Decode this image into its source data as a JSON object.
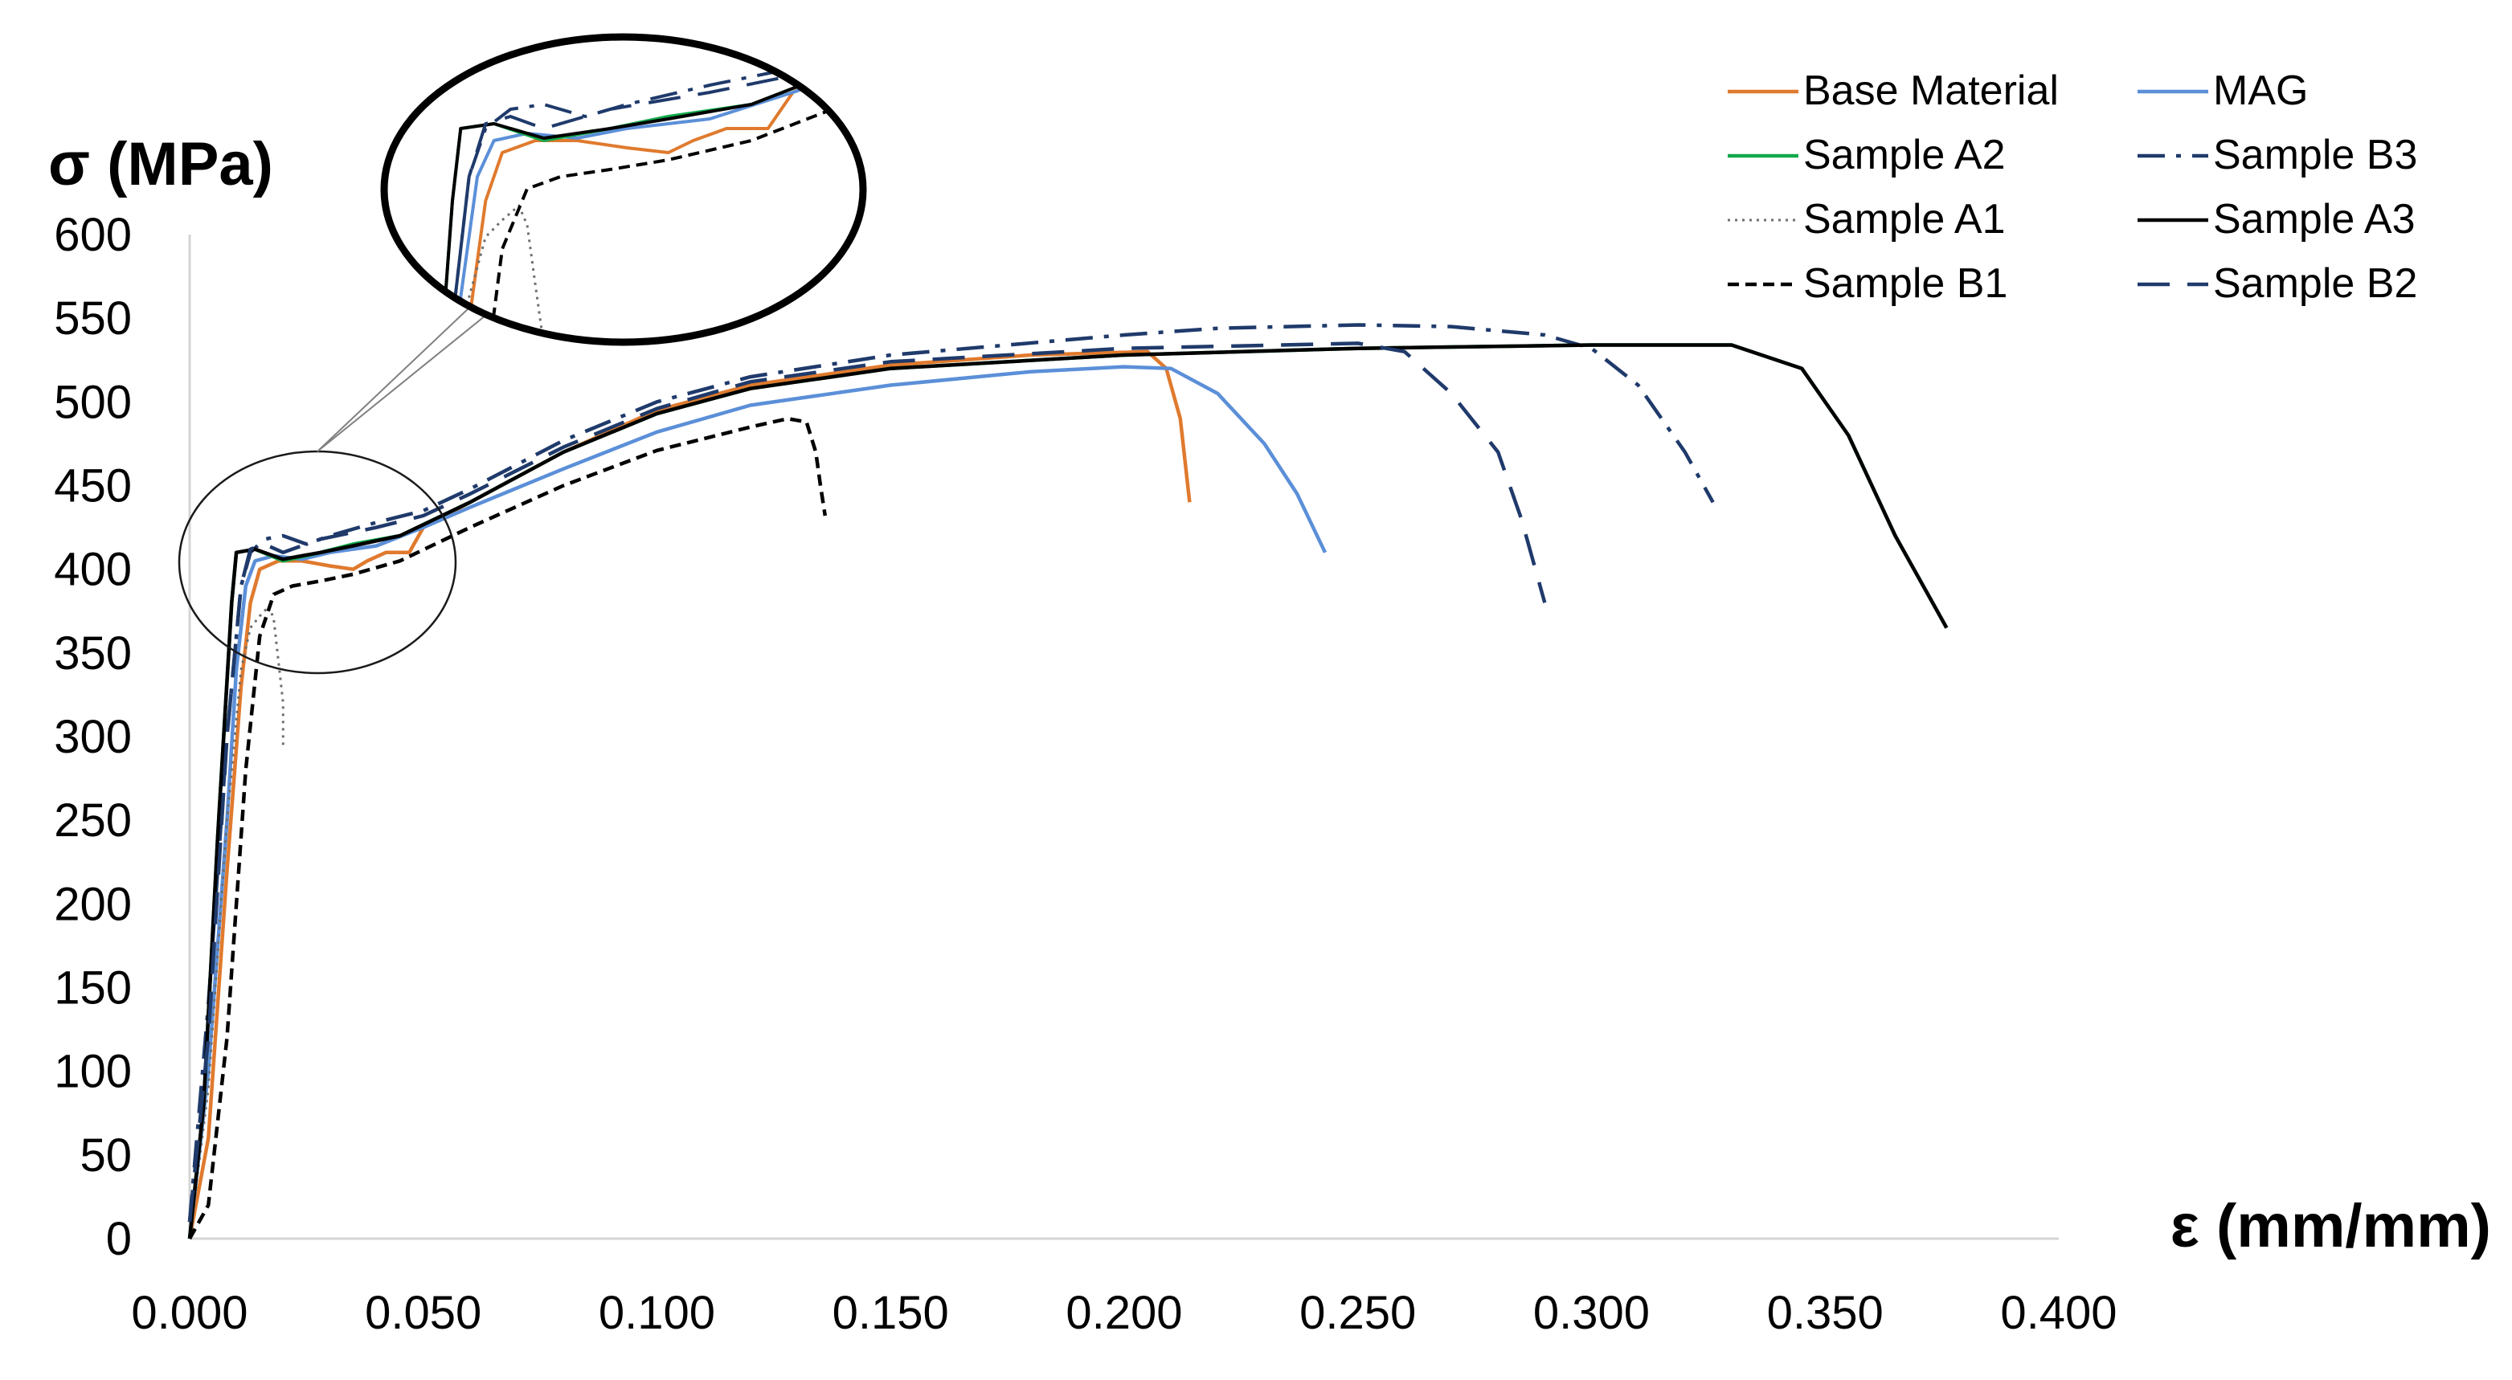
{
  "chart_data": {
    "type": "line",
    "title": "",
    "ylabel": "σ (MPa)",
    "xlabel": "ε (mm/mm)",
    "xlim": [
      0,
      0.4
    ],
    "ylim": [
      0,
      600
    ],
    "x_ticks": [
      "0.000",
      "0.050",
      "0.100",
      "0.150",
      "0.200",
      "0.250",
      "0.300",
      "0.350",
      "0.400"
    ],
    "y_ticks": [
      "0",
      "50",
      "100",
      "150",
      "200",
      "250",
      "300",
      "350",
      "400",
      "450",
      "500",
      "550",
      "600"
    ],
    "grid": false,
    "legend_position": "top-right",
    "inset": {
      "type": "zoom",
      "region_x": [
        0,
        0.06
      ],
      "region_y": [
        330,
        460
      ]
    },
    "series": [
      {
        "name": "Base Material",
        "color": "#E07A2E",
        "dash": "solid",
        "points": [
          [
            0,
            0
          ],
          [
            0.004,
            60
          ],
          [
            0.008,
            220
          ],
          [
            0.011,
            330
          ],
          [
            0.013,
            380
          ],
          [
            0.015,
            400
          ],
          [
            0.019,
            405
          ],
          [
            0.024,
            405
          ],
          [
            0.03,
            402
          ],
          [
            0.035,
            400
          ],
          [
            0.038,
            405
          ],
          [
            0.042,
            410
          ],
          [
            0.047,
            410
          ],
          [
            0.05,
            425
          ],
          [
            0.06,
            440
          ],
          [
            0.08,
            470
          ],
          [
            0.1,
            495
          ],
          [
            0.12,
            510
          ],
          [
            0.15,
            522
          ],
          [
            0.18,
            528
          ],
          [
            0.205,
            530
          ],
          [
            0.209,
            520
          ],
          [
            0.212,
            490
          ],
          [
            0.214,
            440
          ]
        ]
      },
      {
        "name": "MAG",
        "color": "#5B8FD8",
        "dash": "solid",
        "points": [
          [
            0,
            0
          ],
          [
            0.004,
            100
          ],
          [
            0.008,
            250
          ],
          [
            0.01,
            340
          ],
          [
            0.012,
            390
          ],
          [
            0.014,
            405
          ],
          [
            0.018,
            408
          ],
          [
            0.024,
            406
          ],
          [
            0.03,
            410
          ],
          [
            0.04,
            414
          ],
          [
            0.05,
            425
          ],
          [
            0.06,
            437
          ],
          [
            0.08,
            460
          ],
          [
            0.1,
            482
          ],
          [
            0.12,
            498
          ],
          [
            0.15,
            510
          ],
          [
            0.18,
            518
          ],
          [
            0.2,
            521
          ],
          [
            0.21,
            520
          ],
          [
            0.22,
            505
          ],
          [
            0.23,
            475
          ],
          [
            0.237,
            445
          ],
          [
            0.243,
            410
          ]
        ]
      },
      {
        "name": "Sample A2",
        "color": "#12A94B",
        "dash": "solid",
        "points": [
          [
            0,
            0
          ],
          [
            0.003,
            80
          ],
          [
            0.006,
            240
          ],
          [
            0.009,
            380
          ],
          [
            0.01,
            410
          ],
          [
            0.014,
            412
          ],
          [
            0.02,
            405
          ],
          [
            0.028,
            410
          ],
          [
            0.035,
            415
          ],
          [
            0.045,
            420
          ],
          [
            0.06,
            440
          ],
          [
            0.08,
            470
          ],
          [
            0.1,
            493
          ],
          [
            0.12,
            508
          ],
          [
            0.15,
            520
          ],
          [
            0.2,
            528
          ],
          [
            0.25,
            532
          ],
          [
            0.3,
            534
          ],
          [
            0.33,
            534
          ],
          [
            0.345,
            520
          ],
          [
            0.355,
            480
          ],
          [
            0.365,
            420
          ],
          [
            0.376,
            365
          ]
        ]
      },
      {
        "name": "Sample B3",
        "color": "#1F3A6B",
        "dash": "dashdot",
        "points": [
          [
            0,
            10
          ],
          [
            0.004,
            140
          ],
          [
            0.008,
            300
          ],
          [
            0.011,
            390
          ],
          [
            0.013,
            410
          ],
          [
            0.016,
            418
          ],
          [
            0.02,
            420
          ],
          [
            0.025,
            415
          ],
          [
            0.03,
            420
          ],
          [
            0.04,
            428
          ],
          [
            0.05,
            435
          ],
          [
            0.06,
            448
          ],
          [
            0.08,
            477
          ],
          [
            0.1,
            500
          ],
          [
            0.12,
            515
          ],
          [
            0.15,
            528
          ],
          [
            0.2,
            540
          ],
          [
            0.22,
            544
          ],
          [
            0.25,
            546
          ],
          [
            0.27,
            545
          ],
          [
            0.29,
            540
          ],
          [
            0.3,
            532
          ],
          [
            0.31,
            510
          ],
          [
            0.32,
            470
          ],
          [
            0.326,
            440
          ]
        ]
      },
      {
        "name": "Sample A1",
        "color": "#6E6E6E",
        "dash": "dotted",
        "points": [
          [
            0,
            0
          ],
          [
            0.004,
            90
          ],
          [
            0.008,
            250
          ],
          [
            0.011,
            340
          ],
          [
            0.013,
            365
          ],
          [
            0.015,
            372
          ],
          [
            0.017,
            378
          ],
          [
            0.018,
            370
          ],
          [
            0.019,
            345
          ],
          [
            0.02,
            320
          ],
          [
            0.02,
            295
          ]
        ]
      },
      {
        "name": "Sample A3",
        "color": "#000000",
        "dash": "solid",
        "points": [
          [
            0,
            0
          ],
          [
            0.003,
            80
          ],
          [
            0.006,
            240
          ],
          [
            0.009,
            380
          ],
          [
            0.01,
            410
          ],
          [
            0.014,
            412
          ],
          [
            0.02,
            406
          ],
          [
            0.028,
            410
          ],
          [
            0.035,
            414
          ],
          [
            0.045,
            420
          ],
          [
            0.06,
            440
          ],
          [
            0.08,
            470
          ],
          [
            0.1,
            493
          ],
          [
            0.12,
            508
          ],
          [
            0.15,
            520
          ],
          [
            0.2,
            528
          ],
          [
            0.25,
            532
          ],
          [
            0.3,
            534
          ],
          [
            0.33,
            534
          ],
          [
            0.345,
            520
          ],
          [
            0.355,
            480
          ],
          [
            0.365,
            420
          ],
          [
            0.376,
            365
          ]
        ]
      },
      {
        "name": "Sample B1",
        "color": "#000000",
        "dash": "shortdash",
        "points": [
          [
            0,
            0
          ],
          [
            0.004,
            20
          ],
          [
            0.008,
            120
          ],
          [
            0.012,
            280
          ],
          [
            0.015,
            360
          ],
          [
            0.018,
            385
          ],
          [
            0.022,
            390
          ],
          [
            0.028,
            393
          ],
          [
            0.035,
            397
          ],
          [
            0.045,
            405
          ],
          [
            0.06,
            425
          ],
          [
            0.08,
            450
          ],
          [
            0.1,
            471
          ],
          [
            0.12,
            485
          ],
          [
            0.128,
            490
          ],
          [
            0.132,
            488
          ],
          [
            0.134,
            470
          ],
          [
            0.135,
            450
          ],
          [
            0.136,
            432
          ]
        ]
      },
      {
        "name": "Sample B2",
        "color": "#1F3A6B",
        "dash": "longdash",
        "points": [
          [
            0,
            10
          ],
          [
            0.004,
            120
          ],
          [
            0.008,
            300
          ],
          [
            0.011,
            390
          ],
          [
            0.013,
            412
          ],
          [
            0.016,
            415
          ],
          [
            0.02,
            410
          ],
          [
            0.028,
            418
          ],
          [
            0.04,
            425
          ],
          [
            0.05,
            432
          ],
          [
            0.06,
            445
          ],
          [
            0.08,
            473
          ],
          [
            0.1,
            496
          ],
          [
            0.12,
            512
          ],
          [
            0.15,
            524
          ],
          [
            0.2,
            532
          ],
          [
            0.25,
            535
          ],
          [
            0.26,
            530
          ],
          [
            0.27,
            505
          ],
          [
            0.28,
            470
          ],
          [
            0.285,
            430
          ],
          [
            0.29,
            380
          ]
        ]
      }
    ]
  }
}
